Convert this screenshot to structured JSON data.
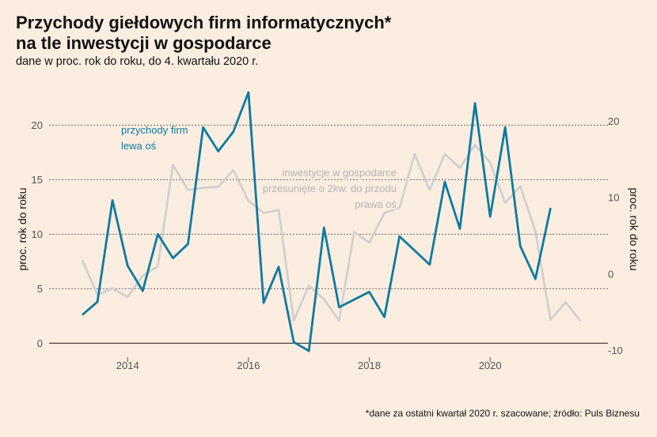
{
  "title_line1": "Przychody giełdowych firm informatycznych*",
  "title_line2": "na tle inwestycji w gospodarce",
  "subtitle": "dane w proc. rok do roku, do 4. kwartału 2020 r.",
  "footnote": "*dane za ostatni kwartał 2020 r. szacowane; źródło: Puls Biznesu",
  "colors": {
    "background": "#fcede1",
    "revenue": "#0e7aa0",
    "investment": "#cfcfcf",
    "investment_label": "#b4b4b4"
  },
  "chart_data": {
    "type": "line",
    "x_ticks": [
      "2014",
      "2016",
      "2018",
      "2020"
    ],
    "x_range": [
      2012.7,
      2021.95
    ],
    "left_axis": {
      "label": "proc. rok do roku",
      "ticks": [
        "0",
        "5",
        "10",
        "15",
        "20"
      ],
      "range": [
        -1.5,
        23.5
      ]
    },
    "right_axis": {
      "label": "proc. rok do roku",
      "ticks": [
        "-10",
        "0",
        "10",
        "20"
      ],
      "range": [
        -11.2,
        24.5
      ]
    },
    "grid": "dashed horizontal at left-axis ticks",
    "series": [
      {
        "name_line1": "przychody firm",
        "name_line2": "lewa oś",
        "axis": "left",
        "points": [
          [
            2013.25,
            2.6
          ],
          [
            2013.5,
            3.8
          ],
          [
            2013.75,
            13.1
          ],
          [
            2014.0,
            7.1
          ],
          [
            2014.25,
            4.8
          ],
          [
            2014.5,
            10.0
          ],
          [
            2014.75,
            7.8
          ],
          [
            2015.0,
            9.1
          ],
          [
            2015.25,
            19.8
          ],
          [
            2015.5,
            17.6
          ],
          [
            2015.75,
            19.4
          ],
          [
            2016.0,
            23.0
          ],
          [
            2016.25,
            3.7
          ],
          [
            2016.5,
            7.0
          ],
          [
            2016.75,
            0.1
          ],
          [
            2017.0,
            -0.7
          ],
          [
            2017.25,
            10.6
          ],
          [
            2017.5,
            3.3
          ],
          [
            2018.0,
            4.7
          ],
          [
            2018.25,
            2.4
          ],
          [
            2018.5,
            9.8
          ],
          [
            2019.0,
            7.2
          ],
          [
            2019.25,
            14.8
          ],
          [
            2019.5,
            10.5
          ],
          [
            2019.75,
            22.0
          ],
          [
            2020.0,
            11.6
          ],
          [
            2020.25,
            19.8
          ],
          [
            2020.5,
            8.9
          ],
          [
            2020.75,
            5.9
          ],
          [
            2021.0,
            12.4
          ]
        ]
      },
      {
        "name_line1": "inwestycje w gospodarce",
        "name_line2": "przesunięte o 2kw. do przodu",
        "name_line3": "prawa oś",
        "axis": "right",
        "points": [
          [
            2013.25,
            1.8
          ],
          [
            2013.5,
            -2.7
          ],
          [
            2013.75,
            -1.9
          ],
          [
            2014.0,
            -3.0
          ],
          [
            2014.25,
            -0.2
          ],
          [
            2014.5,
            1.0
          ],
          [
            2014.75,
            14.3
          ],
          [
            2015.0,
            11.0
          ],
          [
            2015.25,
            11.3
          ],
          [
            2015.5,
            11.4
          ],
          [
            2015.75,
            13.6
          ],
          [
            2016.0,
            9.6
          ],
          [
            2016.25,
            8.0
          ],
          [
            2016.5,
            8.4
          ],
          [
            2016.75,
            -6.1
          ],
          [
            2017.0,
            -1.5
          ],
          [
            2017.25,
            -3.3
          ],
          [
            2017.5,
            -6.1
          ],
          [
            2017.75,
            5.5
          ],
          [
            2018.0,
            4.1
          ],
          [
            2018.25,
            8.0
          ],
          [
            2018.5,
            8.7
          ],
          [
            2018.75,
            15.7
          ],
          [
            2019.0,
            11.0
          ],
          [
            2019.25,
            15.7
          ],
          [
            2019.5,
            13.9
          ],
          [
            2019.75,
            16.9
          ],
          [
            2020.0,
            14.6
          ],
          [
            2020.25,
            9.3
          ],
          [
            2020.5,
            11.5
          ],
          [
            2020.75,
            5.6
          ],
          [
            2021.0,
            -6.0
          ],
          [
            2021.25,
            -3.7
          ],
          [
            2021.5,
            -6.2
          ]
        ]
      }
    ]
  }
}
